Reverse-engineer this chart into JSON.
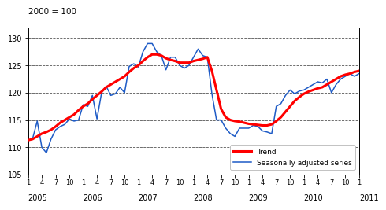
{
  "title": "2000 = 100",
  "ylim": [
    105,
    132
  ],
  "yticks": [
    105,
    110,
    115,
    120,
    125,
    130
  ],
  "trend_color": "#ff0000",
  "seasonal_color": "#1e5bc6",
  "trend_lw": 2.2,
  "seasonal_lw": 1.1,
  "background_color": "#ffffff",
  "grid_color": "#555555",
  "x_year_labels": [
    "2005",
    "2006",
    "2007",
    "2008",
    "2009",
    "2010",
    "2011"
  ],
  "seasonal_data": [
    111.2,
    111.6,
    114.8,
    110.0,
    109.0,
    111.5,
    113.2,
    113.8,
    114.2,
    115.2,
    114.8,
    115.0,
    117.8,
    117.5,
    119.5,
    115.2,
    120.0,
    121.2,
    119.5,
    119.8,
    121.0,
    120.0,
    124.8,
    125.3,
    124.7,
    127.5,
    129.0,
    129.0,
    127.5,
    126.8,
    124.2,
    126.5,
    126.5,
    125.0,
    124.5,
    125.0,
    126.5,
    128.0,
    126.8,
    126.5,
    119.8,
    115.0,
    115.0,
    113.5,
    112.5,
    112.0,
    113.5,
    113.5,
    113.5,
    114.0,
    113.8,
    113.0,
    112.8,
    112.5,
    117.5,
    118.0,
    119.5,
    120.5,
    119.8,
    120.3,
    120.5,
    121.0,
    121.5,
    122.0,
    121.8,
    122.5,
    120.0,
    121.5,
    122.5,
    123.0,
    123.5,
    123.0,
    123.5
  ],
  "trend_data": [
    111.3,
    111.5,
    112.0,
    112.5,
    112.8,
    113.2,
    113.8,
    114.5,
    115.0,
    115.5,
    116.0,
    116.8,
    117.5,
    118.0,
    118.8,
    119.5,
    120.2,
    121.0,
    121.5,
    122.0,
    122.5,
    123.0,
    123.8,
    124.5,
    125.0,
    125.8,
    126.5,
    127.0,
    127.0,
    126.8,
    126.3,
    126.0,
    125.8,
    125.5,
    125.5,
    125.5,
    125.8,
    126.0,
    126.2,
    126.5,
    124.0,
    120.5,
    117.0,
    115.5,
    115.0,
    114.8,
    114.7,
    114.5,
    114.3,
    114.2,
    114.1,
    114.0,
    114.0,
    114.2,
    114.8,
    115.5,
    116.5,
    117.5,
    118.5,
    119.2,
    119.8,
    120.2,
    120.5,
    120.8,
    121.0,
    121.5,
    122.0,
    122.5,
    123.0,
    123.3,
    123.5,
    123.8,
    124.0
  ]
}
